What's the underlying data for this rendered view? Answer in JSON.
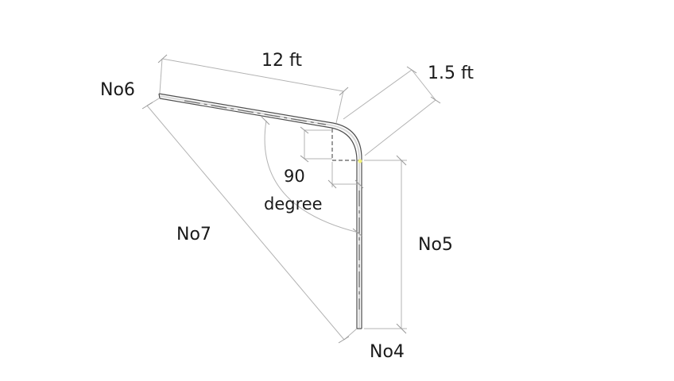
{
  "labels": {
    "bar_top": "No6",
    "bar_diagonal": "No7",
    "bar_vertical": "No5",
    "bar_bottom": "No4",
    "length_top": "12 ft",
    "length_bend": "1.5 ft",
    "angle_value": "90",
    "angle_unit": "degree"
  },
  "colors": {
    "dimension_lines": "#b3b3b3",
    "bar_outline": "#4d4d4d",
    "text": "#1a1a1a"
  }
}
